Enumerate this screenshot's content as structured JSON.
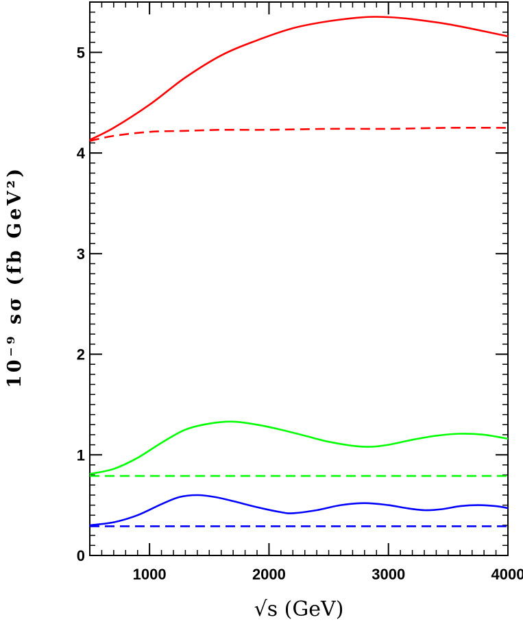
{
  "chart_data": {
    "type": "line",
    "title": "",
    "xlabel": "√s (GeV)",
    "ylabel": "10⁻⁹ sσ (fb GeV²)",
    "xlim": [
      500,
      4000
    ],
    "ylim": [
      0,
      5.5
    ],
    "xticks": [
      1000,
      2000,
      3000,
      4000
    ],
    "yticks": [
      0,
      1,
      2,
      3,
      4,
      5
    ],
    "x_minor_step": 100,
    "y_minor_step": 0.1,
    "grid": false,
    "legend": "none",
    "series": [
      {
        "color": "#ff0000",
        "dash": "solid",
        "x": [
          500,
          700,
          1000,
          1300,
          1600,
          1900,
          2200,
          2500,
          2800,
          3000,
          3200,
          3500,
          3800,
          4000
        ],
        "y": [
          4.13,
          4.25,
          4.48,
          4.75,
          4.97,
          5.12,
          5.24,
          5.31,
          5.35,
          5.35,
          5.33,
          5.28,
          5.21,
          5.16
        ]
      },
      {
        "color": "#ff0000",
        "dash": "dashed",
        "x": [
          500,
          700,
          1000,
          1300,
          1600,
          2000,
          2500,
          3000,
          3500,
          4000
        ],
        "y": [
          4.12,
          4.17,
          4.21,
          4.22,
          4.23,
          4.23,
          4.24,
          4.24,
          4.25,
          4.25
        ]
      },
      {
        "color": "#00ff00",
        "dash": "solid",
        "x": [
          500,
          700,
          900,
          1100,
          1300,
          1500,
          1700,
          1900,
          2100,
          2300,
          2500,
          2700,
          2850,
          3000,
          3200,
          3400,
          3600,
          3800,
          4000
        ],
        "y": [
          0.81,
          0.86,
          0.97,
          1.12,
          1.25,
          1.31,
          1.33,
          1.3,
          1.25,
          1.19,
          1.13,
          1.09,
          1.08,
          1.1,
          1.15,
          1.19,
          1.21,
          1.2,
          1.16
        ]
      },
      {
        "color": "#00ff00",
        "dash": "dashed",
        "x": [
          500,
          4000
        ],
        "y": [
          0.79,
          0.79
        ]
      },
      {
        "color": "#0000ff",
        "dash": "solid",
        "x": [
          500,
          700,
          900,
          1100,
          1250,
          1400,
          1550,
          1700,
          1900,
          2100,
          2200,
          2400,
          2600,
          2800,
          3000,
          3150,
          3300,
          3450,
          3600,
          3750,
          3900,
          4000
        ],
        "y": [
          0.3,
          0.33,
          0.4,
          0.51,
          0.58,
          0.6,
          0.58,
          0.54,
          0.48,
          0.43,
          0.42,
          0.45,
          0.5,
          0.52,
          0.5,
          0.47,
          0.45,
          0.46,
          0.49,
          0.5,
          0.49,
          0.47
        ]
      },
      {
        "color": "#0000ff",
        "dash": "dashed",
        "x": [
          500,
          4000
        ],
        "y": [
          0.29,
          0.29
        ]
      }
    ]
  }
}
